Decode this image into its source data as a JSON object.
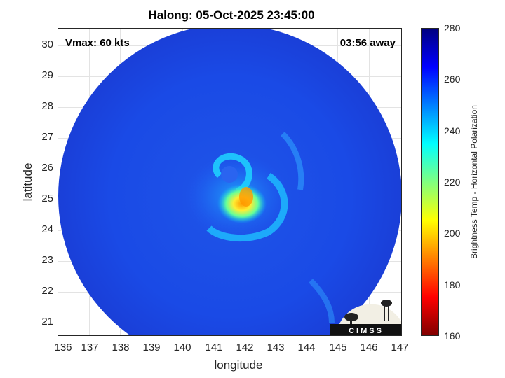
{
  "title": "Halong: 05-Oct-2025 23:45:00",
  "vmax_label": "Vmax: 60 kts",
  "away_label": "03:56 away",
  "x_axis": {
    "label": "longitude",
    "ticks": [
      "136",
      "137",
      "138",
      "139",
      "140",
      "141",
      "142",
      "143",
      "144",
      "145",
      "146",
      "147"
    ]
  },
  "y_axis": {
    "label": "latitude",
    "ticks": [
      "30",
      "29",
      "28",
      "27",
      "26",
      "25",
      "24",
      "23",
      "22",
      "21"
    ]
  },
  "colorbar": {
    "label": "Brightness Temp - Horizontal Polarization",
    "ticks": [
      "280",
      "260",
      "240",
      "220",
      "200",
      "180",
      "160"
    ],
    "range": [
      160,
      280
    ]
  },
  "logo_text": "CIMSS",
  "colors": {
    "background_blue": "#1a4de6",
    "eye_cyan": "#33ccff",
    "warm_core": "#ffcc00"
  }
}
